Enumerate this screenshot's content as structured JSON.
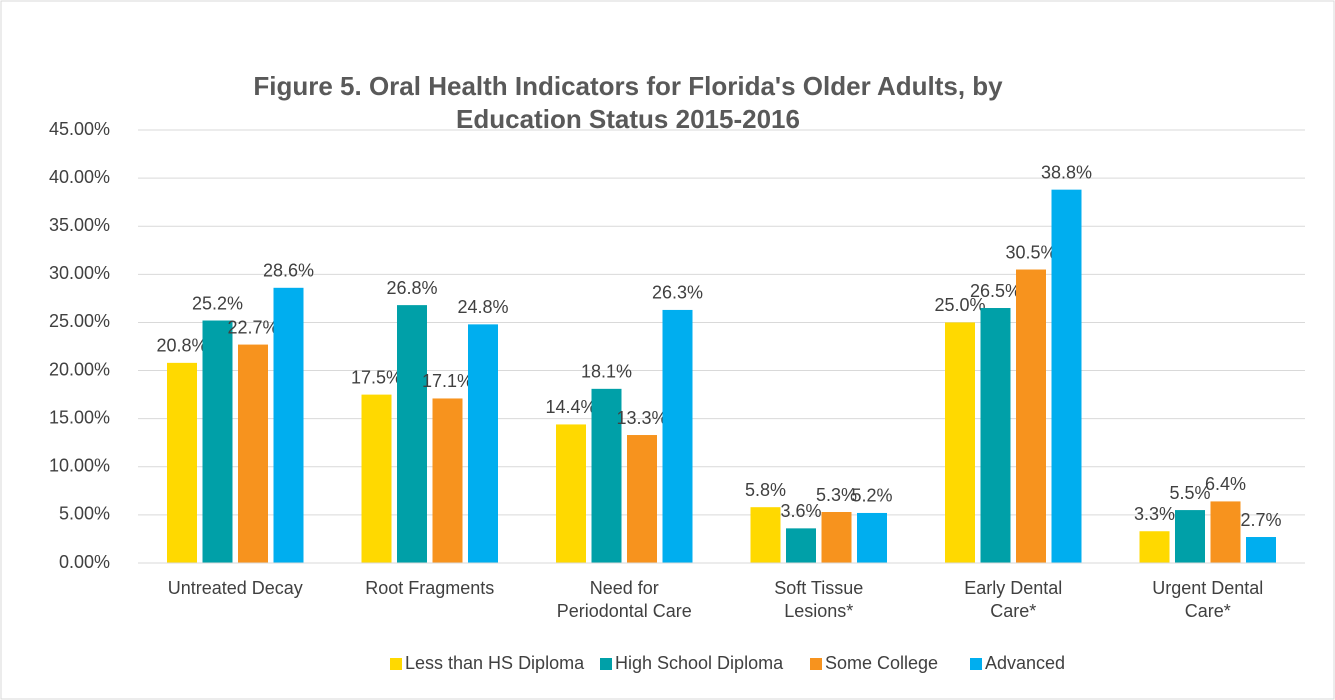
{
  "chart_data": {
    "type": "bar",
    "title": [
      "Figure 5. Oral Health Indicators for Florida's Older Adults, by",
      "Education Status 2015-2016"
    ],
    "categories": [
      "Untreated Decay",
      "Root Fragments",
      "Need for\nPeriodontal Care",
      "Soft Tissue\nLesions*",
      "Early Dental\nCare*",
      "Urgent Dental\nCare*"
    ],
    "series": [
      {
        "name": "Less than HS Diploma",
        "color": "#ffd900",
        "values": [
          20.8,
          17.5,
          14.4,
          5.8,
          25.0,
          3.3
        ],
        "value_labels": [
          "20.8%",
          "17.5%",
          "14.4%",
          "5.8%",
          "25.0%",
          "3.3%"
        ]
      },
      {
        "name": "High School Diploma",
        "color": "#00a0a8",
        "values": [
          25.2,
          26.8,
          18.1,
          3.6,
          26.5,
          5.5
        ],
        "value_labels": [
          "25.2%",
          "26.8%",
          "18.1%",
          "3.6%",
          "26.5%",
          "5.5%"
        ]
      },
      {
        "name": "Some College",
        "color": "#f7931e",
        "values": [
          22.7,
          17.1,
          13.3,
          5.3,
          30.5,
          6.4
        ],
        "value_labels": [
          "22.7%",
          "17.1%",
          "13.3%",
          "5.3%",
          "30.5%",
          "6.4%"
        ]
      },
      {
        "name": "Advanced",
        "color": "#00aeef",
        "values": [
          28.6,
          24.8,
          26.3,
          5.2,
          38.8,
          2.7
        ],
        "value_labels": [
          "28.6%",
          "24.8%",
          "26.3%",
          "5.2%",
          "38.8%",
          "2.7%"
        ]
      }
    ],
    "ylim": [
      0,
      45
    ],
    "yticks": [
      {
        "value": 0,
        "label": "0.00%"
      },
      {
        "value": 5,
        "label": "5.00%"
      },
      {
        "value": 10,
        "label": "10.00%"
      },
      {
        "value": 15,
        "label": "15.00%"
      },
      {
        "value": 20,
        "label": "20.00%"
      },
      {
        "value": 25,
        "label": "25.00%"
      },
      {
        "value": 30,
        "label": "30.00%"
      },
      {
        "value": 35,
        "label": "35.00%"
      },
      {
        "value": 40,
        "label": "40.00%"
      },
      {
        "value": 45,
        "label": "45.00%"
      }
    ],
    "grid": true,
    "legend": "bottom"
  }
}
